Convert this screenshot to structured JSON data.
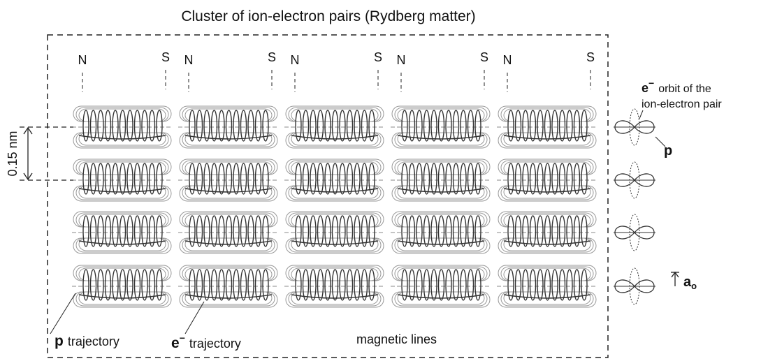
{
  "title": "Cluster of ion-electron pairs (Rydberg matter)",
  "poles": [
    {
      "north": "N",
      "south": "S"
    },
    {
      "north": "N",
      "south": "S"
    },
    {
      "north": "N",
      "south": "S"
    },
    {
      "north": "N",
      "south": "S"
    },
    {
      "north": "N",
      "south": "S"
    }
  ],
  "scale_label": "0.15 nm",
  "orbit_label": {
    "symbol": "e",
    "charge": "−",
    "line1": "orbit of the",
    "line2": "ion-electron pair"
  },
  "proton_label": "p",
  "bohr_radius": {
    "symbol": "a",
    "subscript": "o"
  },
  "bottom_labels": {
    "p_trajectory": {
      "symbol": "p",
      "text": "trajectory"
    },
    "e_trajectory": {
      "symbol": "e",
      "charge": "−",
      "text": "trajectory"
    },
    "magnetic_lines": "magnetic lines"
  }
}
